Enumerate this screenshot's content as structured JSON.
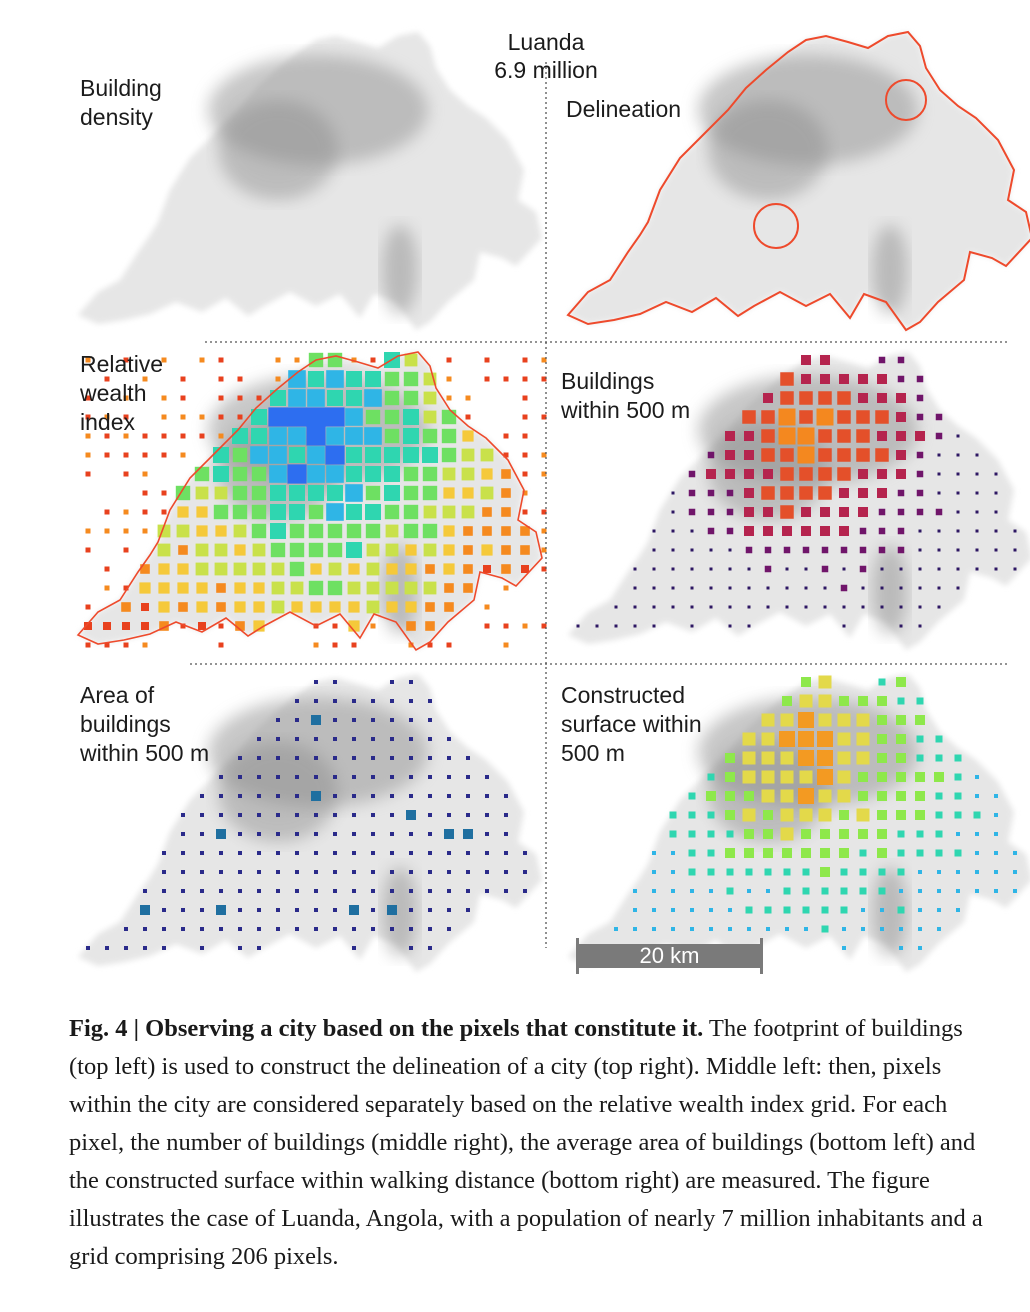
{
  "figure": {
    "city_label": "Luanda\n6.9 million",
    "panels": {
      "building_density": "Building\ndensity",
      "delineation": "Delineation",
      "relative_wealth_index": "Relative\nwealth\nindex",
      "buildings_within_500m": "Buildings\nwithin 500 m",
      "area_of_buildings": "Area of\nbuildings\nwithin 500 m",
      "constructed_surface": "Constructed\nsurface within\n500 m"
    },
    "scale_bar": {
      "label": "20 km"
    },
    "colors": {
      "delineation_line": "#ee4a2c",
      "density_dark": "#3c3c3c",
      "density_light": "#e6e6e6",
      "wealth_scale": [
        "#e8411e",
        "#f58a1f",
        "#f5c93a",
        "#c9e14a",
        "#6ee062",
        "#2fd6b0",
        "#2fb5e6",
        "#2d6ef0"
      ],
      "buildings_scale": [
        "#2d1763",
        "#70156a",
        "#b5244e",
        "#e4502a",
        "#f4881f"
      ],
      "area_scale": [
        "#2a2a8a",
        "#1f6fa0",
        "#43c463"
      ],
      "constructed_scale": [
        "#2fb5e6",
        "#2fd6b0",
        "#8ee84b",
        "#e3d94a",
        "#f39a22"
      ]
    }
  },
  "caption": {
    "label": "Fig. 4 | Observing a city based on the pixels that constitute it.",
    "text": " The footprint of buildings (top left) is used to construct the delineation of a city (top right). Middle left: then, pixels within the city are considered separately based on the relative wealth index grid. For each pixel, the number of buildings (middle right), the average area of buildings (bottom left) and the constructed surface within walking distance (bottom right) are measured. The figure illustrates the case of Luanda, Angola, with a population of nearly 7 million inhabitants and a grid comprising 206 pixels."
  }
}
